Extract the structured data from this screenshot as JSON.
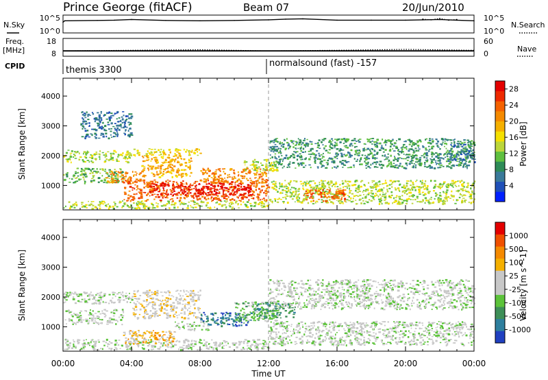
{
  "header": {
    "station": "Prince George (fitACF)",
    "beam": "Beam 07",
    "date": "20/Jun/2010"
  },
  "side_labels": {
    "nsky": "N.Sky",
    "nsearch": "N.Search",
    "freq": "Freq.",
    "freq_unit": "[MHz]",
    "nave": "Nave",
    "cpid": "CPID"
  },
  "cpid_labels": [
    "themis 3300",
    "normalsound (fast) -157"
  ],
  "chart_data": [
    {
      "type": "line",
      "name": "noise-panel",
      "ylabels_left": [
        "10^5",
        "10^0"
      ],
      "ylabels_right": [
        "10^5",
        "10^0"
      ],
      "series": [
        {
          "name": "N.Sky",
          "x": [
            0,
            0.1,
            2,
            3,
            4,
            6,
            8,
            10,
            12,
            13,
            14,
            16,
            18,
            20,
            21,
            22,
            23,
            24
          ],
          "values": [
            3.2,
            3.6,
            3.7,
            3.8,
            4.0,
            3.7,
            3.6,
            3.7,
            3.9,
            4.1,
            4.2,
            3.8,
            3.8,
            3.8,
            3.9,
            4.0,
            3.8,
            3.6
          ]
        },
        {
          "name": "N.Search",
          "x": [
            21,
            21.5,
            22,
            22.5,
            23
          ],
          "values": [
            4.1,
            3.9,
            4.3,
            3.8,
            4.0
          ]
        }
      ]
    },
    {
      "type": "line",
      "name": "freq-panel",
      "ylabels_left": [
        "18",
        "8"
      ],
      "ylabels_right": [
        "60",
        "0"
      ],
      "series": [
        {
          "name": "Freq.",
          "x": [
            0,
            4,
            8,
            12,
            16,
            20,
            24
          ],
          "values": [
            11.0,
            11.0,
            11.0,
            11.0,
            11.0,
            11.0,
            11.0
          ]
        },
        {
          "name": "Nave",
          "x": [
            0,
            4,
            8,
            12,
            16,
            20,
            24
          ],
          "values": [
            18,
            20,
            22,
            18,
            20,
            23,
            20
          ]
        }
      ]
    },
    {
      "type": "heatmap",
      "name": "power-panel",
      "ylabel": "Slant Range [km]",
      "ylim": [
        180,
        4600
      ],
      "yticks": [
        1000,
        2000,
        3000,
        4000
      ],
      "colorbar": {
        "label": "Power [dB]",
        "ticks": [
          "4",
          "8",
          "12",
          "16",
          "20",
          "24",
          "28"
        ],
        "colors": [
          "#0020ff",
          "#2050b8",
          "#3a7a9a",
          "#2e8b57",
          "#5fbf3f",
          "#bcd63a",
          "#f5e000",
          "#f5b000",
          "#f58a00",
          "#f56200",
          "#ee2a00",
          "#e40000"
        ]
      },
      "regions": [
        {
          "t0": 0.0,
          "t1": 4.0,
          "r0": 1800,
          "r1": 2200,
          "level": 5
        },
        {
          "t0": 0.0,
          "t1": 3.5,
          "r0": 1100,
          "r1": 1600,
          "level": 4
        },
        {
          "t0": 1.0,
          "t1": 4.0,
          "r0": 2600,
          "r1": 3500,
          "level": 2
        },
        {
          "t0": 4.0,
          "t1": 8.0,
          "r0": 2000,
          "r1": 2250,
          "level": 6
        },
        {
          "t0": 2.5,
          "t1": 4.5,
          "r0": 1100,
          "r1": 1500,
          "level": 8
        },
        {
          "t0": 4.5,
          "t1": 7.5,
          "r0": 1300,
          "r1": 2000,
          "level": 7
        },
        {
          "t0": 0.0,
          "t1": 12.0,
          "r0": 250,
          "r1": 500,
          "level": 5
        },
        {
          "t0": 3.5,
          "t1": 12.0,
          "r0": 500,
          "r1": 1200,
          "level": 9
        },
        {
          "t0": 5.0,
          "t1": 11.0,
          "r0": 700,
          "r1": 1100,
          "level": 11
        },
        {
          "t0": 8.0,
          "t1": 12.0,
          "r0": 1100,
          "r1": 1600,
          "level": 8
        },
        {
          "t0": 10.5,
          "t1": 12.5,
          "r0": 1500,
          "r1": 1900,
          "level": 5
        },
        {
          "t0": 12.0,
          "t1": 24.0,
          "r0": 400,
          "r1": 1200,
          "level": 5
        },
        {
          "t0": 14.0,
          "t1": 16.5,
          "r0": 500,
          "r1": 900,
          "level": 9
        },
        {
          "t0": 12.0,
          "t1": 24.0,
          "r0": 1600,
          "r1": 2600,
          "level": 3
        },
        {
          "t0": 22.5,
          "t1": 24.0,
          "r0": 1800,
          "r1": 2400,
          "level": 2
        }
      ]
    },
    {
      "type": "heatmap",
      "name": "velocity-panel",
      "ylabel": "Slant Range [km]",
      "ylim": [
        180,
        4600
      ],
      "yticks": [
        1000,
        2000,
        3000,
        4000
      ],
      "xlabel": "Time UT",
      "xticks": [
        "00:00",
        "04:00",
        "08:00",
        "12:00",
        "16:00",
        "20:00",
        "00:00"
      ],
      "colorbar": {
        "label": "Velocity [m s^-1]",
        "ticks": [
          "1000",
          "500",
          "100",
          "25",
          "-25",
          "-100",
          "-500",
          "-1000"
        ],
        "colors": [
          "#2040c0",
          "#2e7f9e",
          "#3e8f58",
          "#5cc33a",
          "#c8c8c8",
          "#c8c8c8",
          "#f5b000",
          "#f58a00",
          "#f05000",
          "#e40000"
        ]
      },
      "regions": [
        {
          "t0": 0.0,
          "t1": 4.0,
          "r0": 1800,
          "r1": 2200,
          "level": 4
        },
        {
          "t0": 0.0,
          "t1": 3.5,
          "r0": 1100,
          "r1": 1600,
          "level": 4
        },
        {
          "t0": 4.0,
          "t1": 8.0,
          "r0": 1300,
          "r1": 2250,
          "level": 5
        },
        {
          "t0": 0.0,
          "t1": 12.0,
          "r0": 250,
          "r1": 600,
          "level": 4
        },
        {
          "t0": 3.5,
          "t1": 6.5,
          "r0": 400,
          "r1": 900,
          "level": 6
        },
        {
          "t0": 6.5,
          "t1": 8.5,
          "r0": 900,
          "r1": 1200,
          "level": 4
        },
        {
          "t0": 8.0,
          "t1": 11.0,
          "r0": 1050,
          "r1": 1500,
          "level": 1
        },
        {
          "t0": 10.0,
          "t1": 12.5,
          "r0": 1200,
          "r1": 1900,
          "level": 3
        },
        {
          "t0": 11.0,
          "t1": 13.5,
          "r0": 1300,
          "r1": 1800,
          "level": 2
        },
        {
          "t0": 12.0,
          "t1": 24.0,
          "r0": 400,
          "r1": 1200,
          "level": 4
        },
        {
          "t0": 12.0,
          "t1": 24.0,
          "r0": 1600,
          "r1": 2600,
          "level": 4
        }
      ]
    }
  ]
}
